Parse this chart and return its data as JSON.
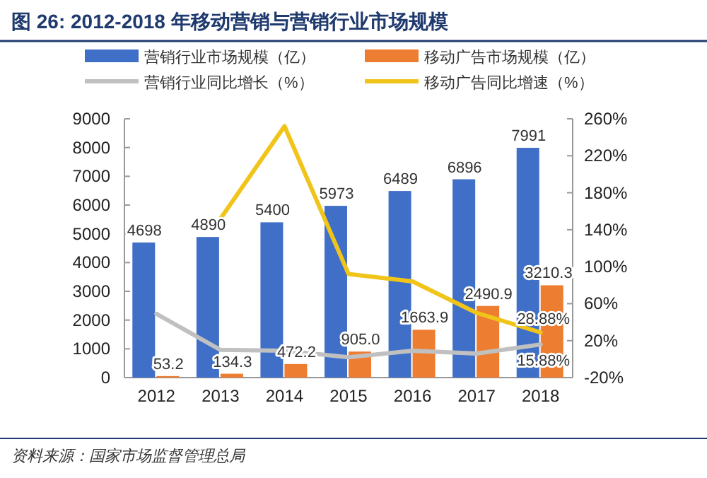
{
  "chart_data": {
    "type": "bar",
    "title": "图 26:    2012-2018 年移动营销与营销行业市场规模",
    "categories": [
      "2012",
      "2013",
      "2014",
      "2015",
      "2016",
      "2017",
      "2018"
    ],
    "series": [
      {
        "name": "营销行业市场规模（亿）",
        "color": "#3f6fc6",
        "values": [
          4698,
          4890,
          5400,
          5973,
          6489,
          6896,
          7991
        ],
        "value_labels": [
          "4698",
          "4890",
          "5400",
          "5973",
          "6489",
          "6896",
          "7991"
        ]
      },
      {
        "name": "移动广告市场规模（亿）",
        "color": "#ed7d31",
        "values": [
          53.2,
          134.3,
          472.2,
          905.0,
          1663.9,
          2490.9,
          3210.3
        ],
        "value_labels": [
          "53.2",
          "134.3",
          "472.2",
          "905.0",
          "1663.9",
          "2490.9",
          "3210.3"
        ]
      },
      {
        "name": "营销行业同比增长（%）",
        "type": "line",
        "axis": "y2",
        "color": "#c0c0c0",
        "values": [
          49,
          10,
          9,
          2,
          9,
          6,
          15.88
        ],
        "value_labels": [
          null,
          null,
          null,
          null,
          null,
          null,
          "15.88%"
        ]
      },
      {
        "name": "移动广告同比增速（%）",
        "type": "line",
        "axis": "y2",
        "color": "#f0c419",
        "values": [
          null,
          152,
          252,
          92,
          84,
          50,
          28.88
        ],
        "value_labels": [
          null,
          null,
          null,
          null,
          null,
          null,
          "28.88%"
        ]
      }
    ],
    "ylim": [
      0,
      9000
    ],
    "yticks": [
      0,
      1000,
      2000,
      3000,
      4000,
      5000,
      6000,
      7000,
      8000,
      9000
    ],
    "y2lim": [
      -20,
      260
    ],
    "y2ticks": [
      {
        "value": -20,
        "label": "-20%"
      },
      {
        "value": 20,
        "label": "20%"
      },
      {
        "value": 60,
        "label": "60%"
      },
      {
        "value": 100,
        "label": "100%"
      },
      {
        "value": 140,
        "label": "140%"
      },
      {
        "value": 180,
        "label": "180%"
      },
      {
        "value": 220,
        "label": "220%"
      },
      {
        "value": 260,
        "label": "260%"
      }
    ],
    "legend": "top",
    "grid": false,
    "annotations": [
      "资料来源：国家市场监督管理总局"
    ]
  }
}
